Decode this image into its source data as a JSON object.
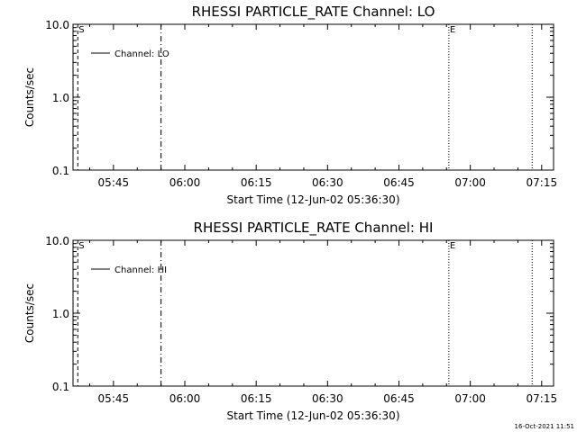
{
  "chart_data": [
    {
      "type": "line",
      "title": "RHESSI PARTICLE_RATE Channel: LO",
      "xlabel": "Start Time (12-Jun-02 05:36:30)",
      "ylabel": "Counts/sec",
      "y_scale": "log",
      "ylim": [
        0.1,
        10.0
      ],
      "xlim": [
        "05:36:30",
        "07:17:30"
      ],
      "x_ticks": [
        "05:45",
        "06:00",
        "06:15",
        "06:30",
        "06:45",
        "07:00",
        "07:15"
      ],
      "y_ticks": [
        "0.1",
        "1.0",
        "10.0"
      ],
      "grid": false,
      "legend": "top-left",
      "legend_entries": [
        "Channel: LO"
      ],
      "series": [
        {
          "name": "Channel: LO",
          "x": [],
          "y": []
        }
      ],
      "vertical_markers": [
        {
          "x": "05:37:30",
          "style": "dashed",
          "label": "S"
        },
        {
          "x": "05:55:00",
          "style": "dash-dot",
          "label": ""
        },
        {
          "x": "06:55:30",
          "style": "dotted",
          "label": "E"
        },
        {
          "x": "07:13:00",
          "style": "dotted",
          "label": ""
        }
      ]
    },
    {
      "type": "line",
      "title": "RHESSI PARTICLE_RATE Channel: HI",
      "xlabel": "Start Time (12-Jun-02 05:36:30)",
      "ylabel": "Counts/sec",
      "y_scale": "log",
      "ylim": [
        0.1,
        10.0
      ],
      "xlim": [
        "05:36:30",
        "07:17:30"
      ],
      "x_ticks": [
        "05:45",
        "06:00",
        "06:15",
        "06:30",
        "06:45",
        "07:00",
        "07:15"
      ],
      "y_ticks": [
        "0.1",
        "1.0",
        "10.0"
      ],
      "grid": false,
      "legend": "top-left",
      "legend_entries": [
        "Channel: HI"
      ],
      "series": [
        {
          "name": "Channel: HI",
          "x": [],
          "y": []
        }
      ],
      "vertical_markers": [
        {
          "x": "05:37:30",
          "style": "dashed",
          "label": "S"
        },
        {
          "x": "05:55:00",
          "style": "dash-dot",
          "label": ""
        },
        {
          "x": "06:55:30",
          "style": "dotted",
          "label": "E"
        },
        {
          "x": "07:13:00",
          "style": "dotted",
          "label": ""
        }
      ]
    }
  ],
  "footer": {
    "timestamp": "16-Oct-2021 11:51"
  },
  "colors": {
    "background": "#ffffff",
    "foreground": "#000000"
  }
}
